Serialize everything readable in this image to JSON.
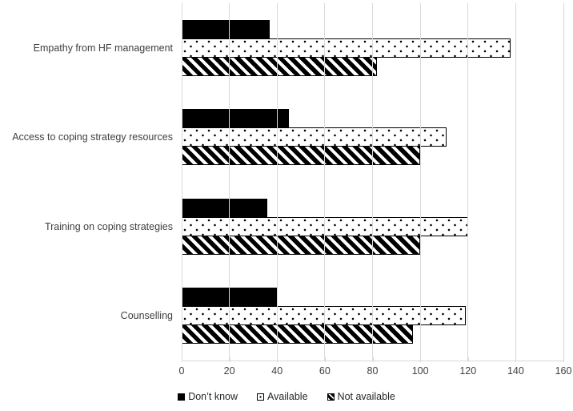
{
  "chart_data": {
    "type": "bar",
    "orientation": "horizontal",
    "title": "",
    "xlabel": "",
    "ylabel": "",
    "categories": [
      "Empathy from HF management",
      "Access to coping strategy resources",
      "Training on coping strategies",
      "Counselling"
    ],
    "series": [
      {
        "name": "Don’t know",
        "pattern": "solid-black",
        "values": [
          37,
          45,
          36,
          40
        ]
      },
      {
        "name": "Available",
        "pattern": "polka-dots",
        "values": [
          138,
          111,
          120,
          119
        ]
      },
      {
        "name": "Not available",
        "pattern": "diagonal-stripes",
        "values": [
          82,
          100,
          100,
          97
        ]
      }
    ],
    "xlim": [
      0,
      160
    ],
    "x_ticks": [
      0,
      20,
      40,
      60,
      80,
      100,
      120,
      140,
      160
    ],
    "grid": "vertical",
    "legend_position": "bottom",
    "colors": {
      "bar_black": "#000000",
      "bar_white": "#ffffff",
      "bar_border": "#000000",
      "gridline": "#d9d9d9",
      "text": "#404040",
      "background": "#ffffff"
    }
  }
}
